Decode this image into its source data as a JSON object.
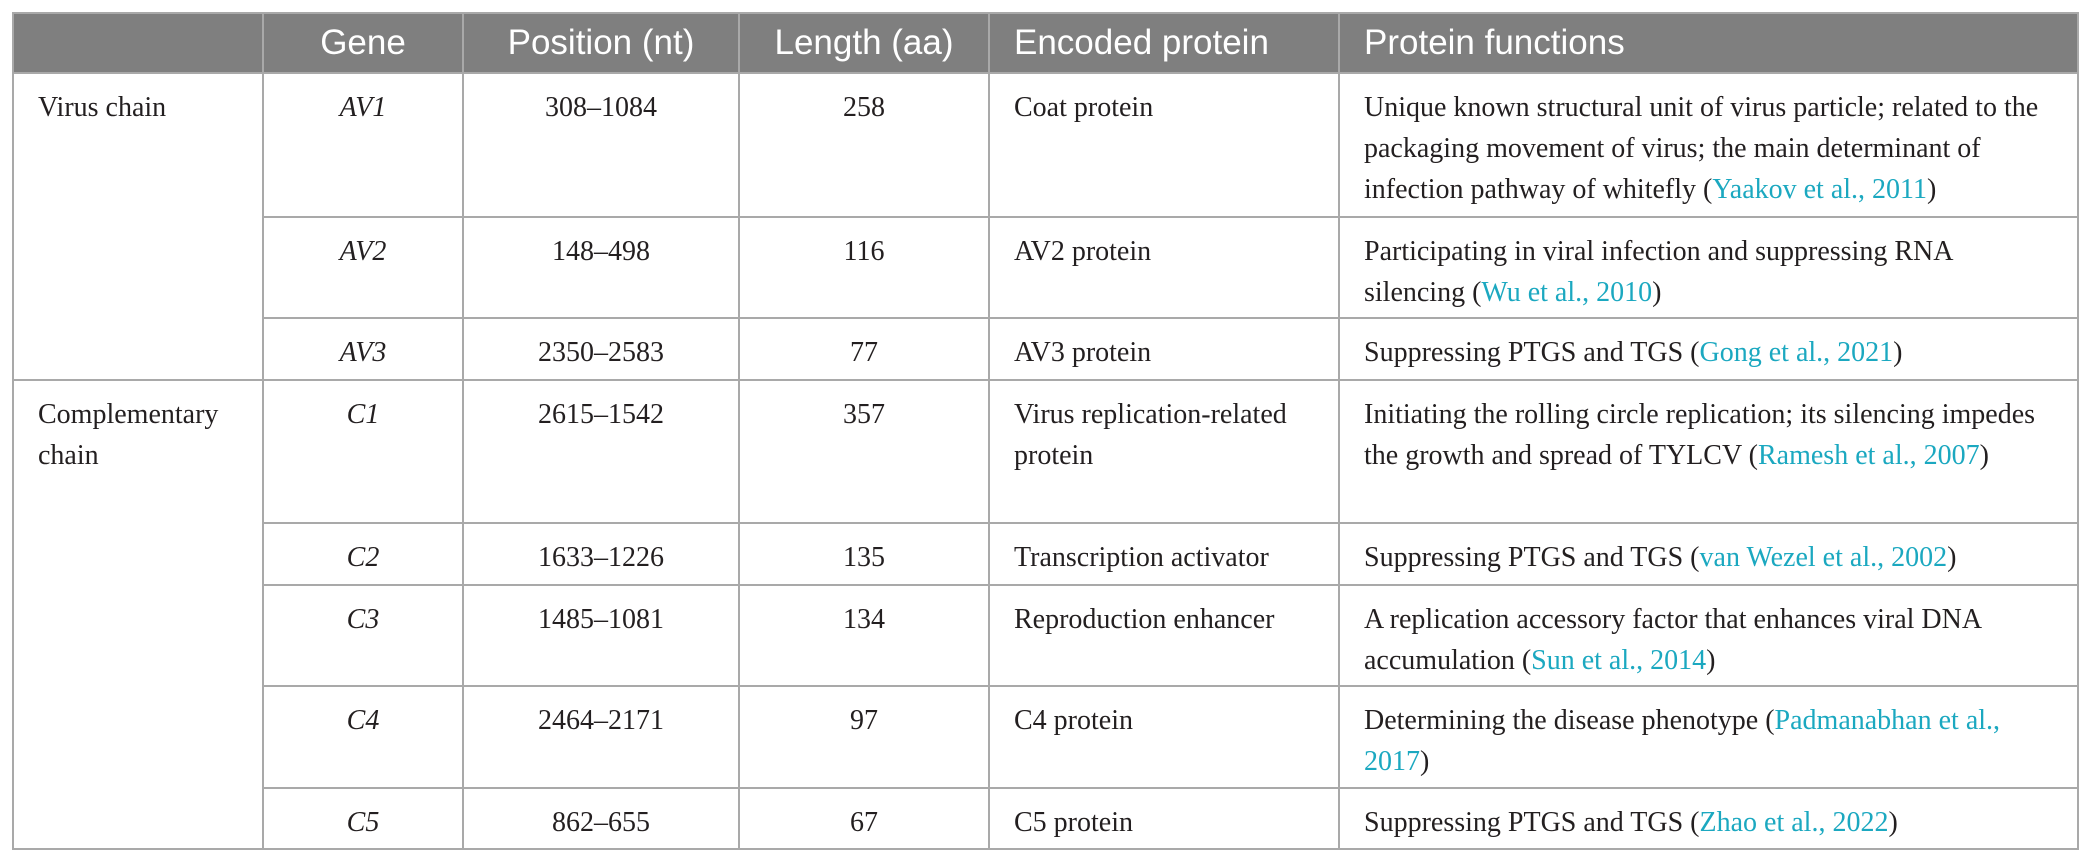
{
  "headers": {
    "group": "",
    "gene": "Gene",
    "position": "Position (nt)",
    "length": "Length (aa)",
    "protein": "Encoded protein",
    "functions": "Protein functions"
  },
  "groups": [
    "Virus chain",
    "Complementary chain"
  ],
  "rows": [
    {
      "gene": "AV1",
      "position": "308–1084",
      "length": "258",
      "protein": "Coat protein",
      "function_text": "Unique known structural unit of virus particle; related to the packaging movement of virus; the main determinant of infection pathway of whitefly (",
      "ref": "Yaakov et al., 2011",
      "close": ")"
    },
    {
      "gene": "AV2",
      "position": "148–498",
      "length": "116",
      "protein": "AV2 protein",
      "function_text": "Participating in viral infection and suppressing RNA silencing (",
      "ref": "Wu et al., 2010",
      "close": ")"
    },
    {
      "gene": "AV3",
      "position": "2350–2583",
      "length": "77",
      "protein": "AV3 protein",
      "function_text": "Suppressing PTGS and TGS (",
      "ref": "Gong et al., 2021",
      "close": ")"
    },
    {
      "gene": "C1",
      "position": "2615–1542",
      "length": "357",
      "protein": "Virus replication-related protein",
      "function_text": "Initiating the rolling circle replication; its silencing impedes the growth and spread of TYLCV (",
      "ref": "Ramesh et al., 2007",
      "close": ")"
    },
    {
      "gene": "C2",
      "position": "1633–1226",
      "length": "135",
      "protein": "Transcription activator",
      "function_text": "Suppressing PTGS and TGS (",
      "ref": "van Wezel et al., 2002",
      "close": ")"
    },
    {
      "gene": "C3",
      "position": "1485–1081",
      "length": "134",
      "protein": "Reproduction enhancer",
      "function_text": "A replication accessory factor that enhances viral DNA accumulation (",
      "ref": "Sun et al., 2014",
      "close": ")"
    },
    {
      "gene": "C4",
      "position": "2464–2171",
      "length": "97",
      "protein": "C4 protein",
      "function_text": "Determining the disease phenotype (",
      "ref": "Padmanabhan et al., 2017",
      "close": ")"
    },
    {
      "gene": "C5",
      "position": "862–655",
      "length": "67",
      "protein": "C5 protein",
      "function_text": "Suppressing PTGS and TGS (",
      "ref": "Zhao et al., 2022",
      "close": ")"
    }
  ],
  "colors": {
    "header_bg": "#7f7f7f",
    "border": "#a9a9a9",
    "link": "#1ba8c0"
  }
}
